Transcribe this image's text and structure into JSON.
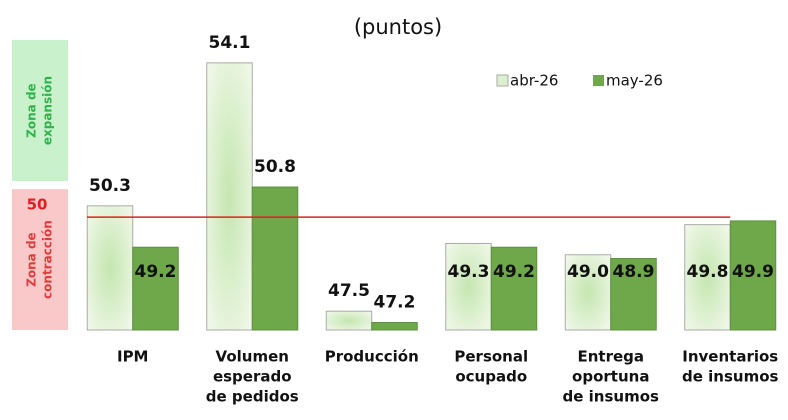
{
  "chart_data": {
    "type": "bar",
    "title": "(puntos)",
    "categories": [
      [
        "IPM"
      ],
      [
        "Volumen",
        "esperado",
        "de pedidos"
      ],
      [
        "Producción"
      ],
      [
        "Personal",
        "ocupado"
      ],
      [
        "Entrega",
        "oportuna",
        "de insumos"
      ],
      [
        "Inventarios",
        "de insumos"
      ]
    ],
    "series": [
      {
        "name": "abr-26",
        "color": "#dcefcf",
        "values": [
          50.3,
          54.1,
          47.5,
          49.3,
          49.0,
          49.8
        ],
        "value_labels": [
          "50.3",
          "54.1",
          "47.5",
          "49.3",
          "49.0",
          "49.8"
        ]
      },
      {
        "name": "may-26",
        "color": "#6fa84a",
        "values": [
          49.2,
          50.8,
          47.2,
          49.2,
          48.9,
          49.9
        ],
        "value_labels": [
          "49.2",
          "50.8",
          "47.2",
          "49.2",
          "48.9",
          "49.9"
        ]
      }
    ],
    "ylim": [
      47,
      55
    ],
    "reference": {
      "value": 50,
      "label": "50",
      "color": "#e02020"
    },
    "zones": [
      {
        "lines": [
          "Zona de",
          "expansión"
        ],
        "color": "#2fb34a",
        "background": "#c9f2cc"
      },
      {
        "lines": [
          "Zona de",
          "contracción"
        ],
        "color": "#e23b3b",
        "background": "#f9c9c9"
      }
    ],
    "legend": "top-right",
    "grid": false
  }
}
